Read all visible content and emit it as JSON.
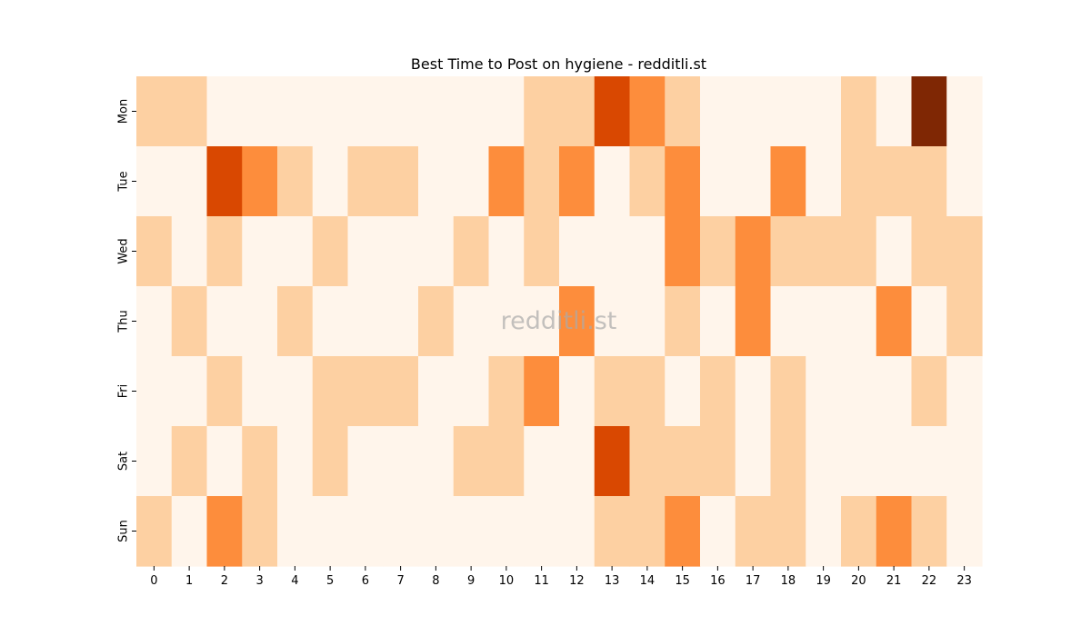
{
  "chart_data": {
    "type": "heatmap",
    "title": "Best Time to Post on hygiene - redditli.st",
    "watermark": "redditli.st",
    "x": [
      "0",
      "1",
      "2",
      "3",
      "4",
      "5",
      "6",
      "7",
      "8",
      "9",
      "10",
      "11",
      "12",
      "13",
      "14",
      "15",
      "16",
      "17",
      "18",
      "19",
      "20",
      "21",
      "22",
      "23"
    ],
    "y": [
      "Mon",
      "Tue",
      "Wed",
      "Thu",
      "Fri",
      "Sat",
      "Sun"
    ],
    "values": [
      [
        1,
        1,
        0,
        0,
        0,
        0,
        0,
        0,
        0,
        0,
        0,
        1,
        1,
        3,
        2,
        1,
        0,
        0,
        0,
        0,
        1,
        0,
        4,
        0
      ],
      [
        0,
        0,
        3,
        2,
        1,
        0,
        1,
        1,
        0,
        0,
        2,
        1,
        2,
        0,
        1,
        2,
        0,
        0,
        2,
        0,
        1,
        1,
        1,
        0
      ],
      [
        1,
        0,
        1,
        0,
        0,
        1,
        0,
        0,
        0,
        1,
        0,
        1,
        0,
        0,
        0,
        2,
        1,
        2,
        1,
        1,
        1,
        0,
        1,
        1
      ],
      [
        0,
        1,
        0,
        0,
        1,
        0,
        0,
        0,
        1,
        0,
        0,
        0,
        2,
        0,
        0,
        1,
        0,
        2,
        0,
        0,
        0,
        2,
        0,
        1
      ],
      [
        0,
        0,
        1,
        0,
        0,
        1,
        1,
        1,
        0,
        0,
        1,
        2,
        0,
        1,
        1,
        0,
        1,
        0,
        1,
        0,
        0,
        0,
        1,
        0
      ],
      [
        0,
        1,
        0,
        1,
        0,
        1,
        0,
        0,
        0,
        1,
        1,
        0,
        0,
        3,
        1,
        1,
        1,
        0,
        1,
        0,
        0,
        0,
        0,
        0
      ],
      [
        1,
        0,
        2,
        1,
        0,
        0,
        0,
        0,
        0,
        0,
        0,
        0,
        0,
        1,
        1,
        2,
        0,
        1,
        1,
        0,
        1,
        2,
        1,
        0
      ]
    ],
    "colors": [
      "#fff5eb",
      "#fdd0a2",
      "#fd8d3c",
      "#d94801",
      "#7f2704"
    ]
  }
}
